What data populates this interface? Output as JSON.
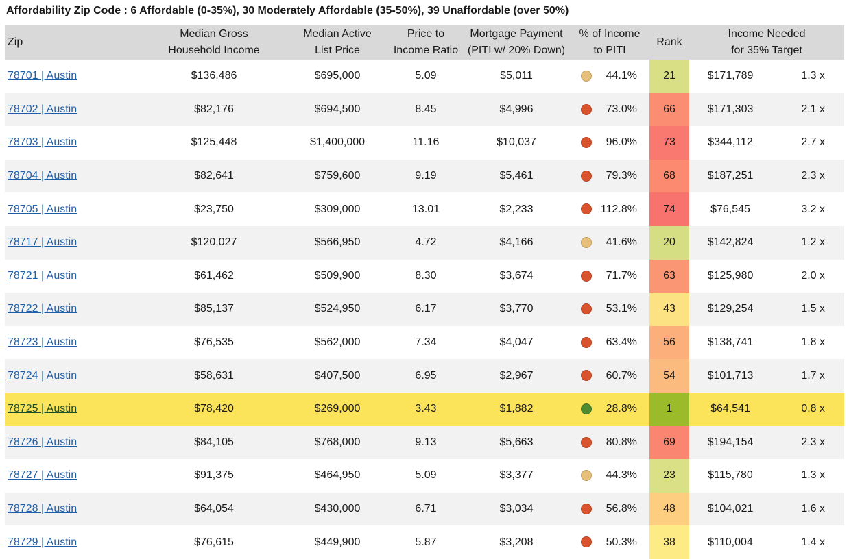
{
  "title": "Affordability Zip Code :  6 Affordable  (0-35%),  30 Moderately Affordable (35-50%), 39 Unaffordable (over 50%)",
  "headers": {
    "zip": "Zip",
    "income_l1": "Median Gross",
    "income_l2": "Household Income",
    "list_l1": "Median Active",
    "list_l2": "List Price",
    "ratio_l1": "Price to",
    "ratio_l2": "Income Ratio",
    "payment_l1": "Mortgage Payment",
    "payment_l2": "(PITI w/ 20% Down)",
    "pct_l1": "% of Income",
    "pct_l2": "to PITI",
    "rank": "Rank",
    "needed_l1": "Income Needed",
    "needed_l2": "for 35% Target"
  },
  "colors": {
    "dot_affordable": "#4f8b2e",
    "dot_moderate": "#e6c07b",
    "dot_unaffordable": "#d9532f",
    "rank_best": "#9cbb2a",
    "highlight_row": "#fbe35a"
  },
  "rows": [
    {
      "zip": "78701 | Austin",
      "income": "$136,486",
      "list": "$695,000",
      "ratio": "5.09",
      "payment": "$5,011",
      "status": "moderate",
      "pct": "44.1%",
      "rank": "21",
      "rank_color": "#d8df85",
      "needed": "$171,789",
      "mult": "1.3 x"
    },
    {
      "zip": "78702 | Austin",
      "income": "$82,176",
      "list": "$694,500",
      "ratio": "8.45",
      "payment": "$4,996",
      "status": "unaffordable",
      "pct": "73.0%",
      "rank": "66",
      "rank_color": "#fb8e72",
      "needed": "$171,303",
      "mult": "2.1 x"
    },
    {
      "zip": "78703 | Austin",
      "income": "$125,448",
      "list": "$1,400,000",
      "ratio": "11.16",
      "payment": "$10,037",
      "status": "unaffordable",
      "pct": "96.0%",
      "rank": "73",
      "rank_color": "#f97870",
      "needed": "$344,112",
      "mult": "2.7 x"
    },
    {
      "zip": "78704 | Austin",
      "income": "$82,641",
      "list": "$759,600",
      "ratio": "9.19",
      "payment": "$5,461",
      "status": "unaffordable",
      "pct": "79.3%",
      "rank": "68",
      "rank_color": "#fb8a71",
      "needed": "$187,251",
      "mult": "2.3 x"
    },
    {
      "zip": "78705 | Austin",
      "income": "$23,750",
      "list": "$309,000",
      "ratio": "13.01",
      "payment": "$2,233",
      "status": "unaffordable",
      "pct": "112.8%",
      "rank": "74",
      "rank_color": "#f8736e",
      "needed": "$76,545",
      "mult": "3.2 x"
    },
    {
      "zip": "78717 | Austin",
      "income": "$120,027",
      "list": "$566,950",
      "ratio": "4.72",
      "payment": "$4,166",
      "status": "moderate",
      "pct": "41.6%",
      "rank": "20",
      "rank_color": "#d6de84",
      "needed": "$142,824",
      "mult": "1.2 x"
    },
    {
      "zip": "78721 | Austin",
      "income": "$61,462",
      "list": "$509,900",
      "ratio": "8.30",
      "payment": "$3,674",
      "status": "unaffordable",
      "pct": "71.7%",
      "rank": "63",
      "rank_color": "#fb9674",
      "needed": "$125,980",
      "mult": "2.0 x"
    },
    {
      "zip": "78722 | Austin",
      "income": "$85,137",
      "list": "$524,950",
      "ratio": "6.17",
      "payment": "$3,770",
      "status": "unaffordable",
      "pct": "53.1%",
      "rank": "43",
      "rank_color": "#fde283",
      "needed": "$129,254",
      "mult": "1.5 x"
    },
    {
      "zip": "78723 | Austin",
      "income": "$76,535",
      "list": "$562,000",
      "ratio": "7.34",
      "payment": "$4,047",
      "status": "unaffordable",
      "pct": "63.4%",
      "rank": "56",
      "rank_color": "#fcae7b",
      "needed": "$138,741",
      "mult": "1.8 x"
    },
    {
      "zip": "78724 | Austin",
      "income": "$58,631",
      "list": "$407,500",
      "ratio": "6.95",
      "payment": "$2,967",
      "status": "unaffordable",
      "pct": "60.7%",
      "rank": "54",
      "rank_color": "#fcbb7e",
      "needed": "$101,713",
      "mult": "1.7 x"
    },
    {
      "zip": "78725 | Austin",
      "income": "$78,420",
      "list": "$269,000",
      "ratio": "3.43",
      "payment": "$1,882",
      "status": "affordable",
      "pct": "28.8%",
      "rank": "1",
      "rank_color": "#9cbb2a",
      "needed": "$64,541",
      "mult": "0.8 x",
      "highlight": true
    },
    {
      "zip": "78726 | Austin",
      "income": "$84,105",
      "list": "$768,000",
      "ratio": "9.13",
      "payment": "$5,663",
      "status": "unaffordable",
      "pct": "80.8%",
      "rank": "69",
      "rank_color": "#fa8571",
      "needed": "$194,154",
      "mult": "2.3 x"
    },
    {
      "zip": "78727 | Austin",
      "income": "$91,375",
      "list": "$464,950",
      "ratio": "5.09",
      "payment": "$3,377",
      "status": "moderate",
      "pct": "44.3%",
      "rank": "23",
      "rank_color": "#dae085",
      "needed": "$115,780",
      "mult": "1.3 x"
    },
    {
      "zip": "78728 | Austin",
      "income": "$64,054",
      "list": "$430,000",
      "ratio": "6.71",
      "payment": "$3,034",
      "status": "unaffordable",
      "pct": "56.8%",
      "rank": "48",
      "rank_color": "#fdcd80",
      "needed": "$104,021",
      "mult": "1.6 x"
    },
    {
      "zip": "78729 | Austin",
      "income": "$76,615",
      "list": "$449,900",
      "ratio": "5.87",
      "payment": "$3,208",
      "status": "unaffordable",
      "pct": "50.3%",
      "rank": "38",
      "rank_color": "#fdeb85",
      "needed": "$110,004",
      "mult": "1.4 x"
    }
  ]
}
